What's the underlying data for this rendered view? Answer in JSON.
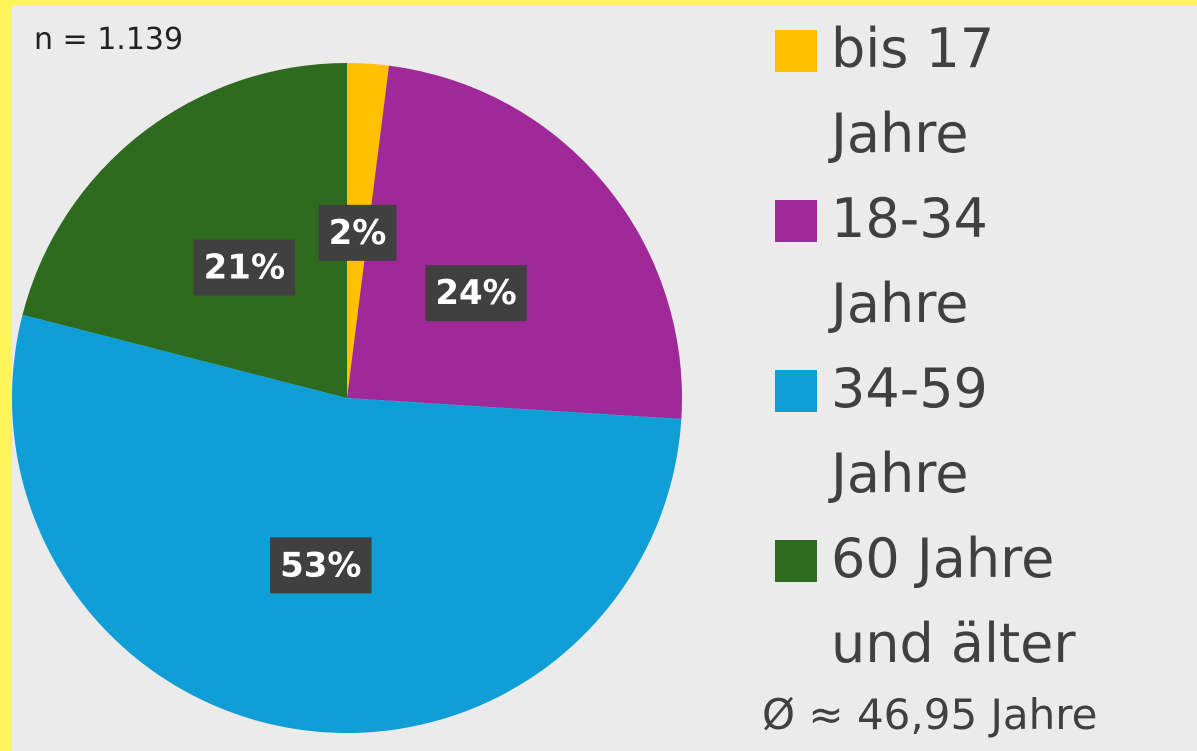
{
  "chart_data": {
    "type": "pie",
    "categories": [
      "bis 17 Jahre",
      "18-34 Jahre",
      "34-59 Jahre",
      "60 Jahre und älter"
    ],
    "values": [
      2,
      24,
      53,
      21
    ],
    "value_labels": [
      "2%",
      "24%",
      "53%",
      "21%"
    ],
    "colors": [
      "#ffc000",
      "#a0299a",
      "#0f9ed5",
      "#2e6b1f"
    ],
    "annotations": [
      "n = 1.139",
      "Ø ≈ 46,95 Jahre"
    ],
    "legend": "right"
  }
}
